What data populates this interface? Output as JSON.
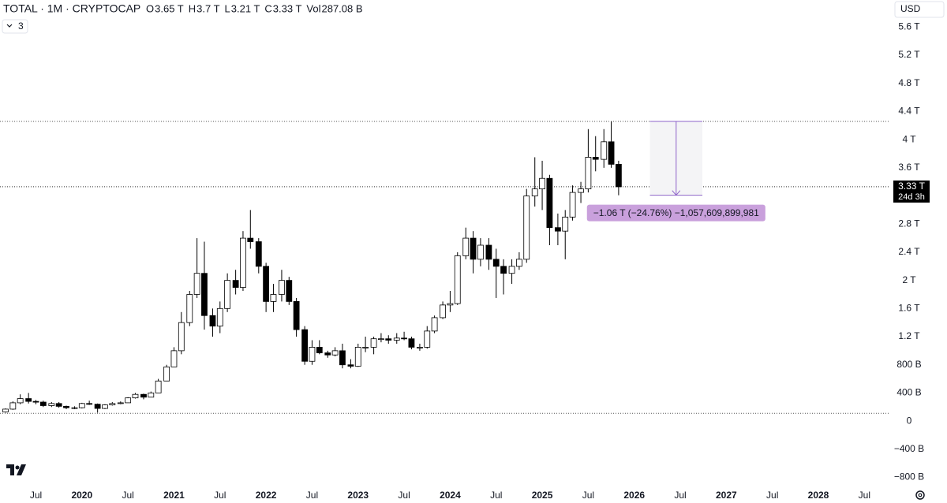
{
  "header": {
    "symbol": "TOTAL · 1M · CRYPTOCAP",
    "ohlc": [
      {
        "key": "O",
        "text": "3.65 T"
      },
      {
        "key": "H",
        "text": "3.7 T"
      },
      {
        "key": "L",
        "text": "3.21 T"
      },
      {
        "key": "C",
        "text": "3.33 T"
      },
      {
        "key": "Vol",
        "text": "287.08 B"
      }
    ],
    "indicator_count": "3",
    "currency": "USD"
  },
  "chart_data": {
    "type": "candlestick",
    "x": [
      2019.17,
      2019.25,
      2019.33,
      2019.42,
      2019.5,
      2019.58,
      2019.67,
      2019.75,
      2019.83,
      2019.92,
      2020,
      2020.08,
      2020.17,
      2020.25,
      2020.33,
      2020.42,
      2020.5,
      2020.58,
      2020.67,
      2020.75,
      2020.83,
      2020.92,
      2021,
      2021.08,
      2021.17,
      2021.25,
      2021.33,
      2021.42,
      2021.5,
      2021.58,
      2021.67,
      2021.75,
      2021.83,
      2021.92,
      2022,
      2022.08,
      2022.17,
      2022.25,
      2022.33,
      2022.42,
      2022.5,
      2022.58,
      2022.67,
      2022.75,
      2022.83,
      2022.92,
      2023,
      2023.08,
      2023.17,
      2023.25,
      2023.33,
      2023.42,
      2023.5,
      2023.58,
      2023.67,
      2023.75,
      2023.83,
      2023.92,
      2024,
      2024.08,
      2024.17,
      2024.25,
      2024.33,
      2024.42,
      2024.5,
      2024.58,
      2024.67,
      2024.75,
      2024.83,
      2024.92,
      2025,
      2025.08,
      2025.17,
      2025.25,
      2025.33,
      2025.42,
      2025.5,
      2025.58,
      2025.67,
      2025.75,
      2025.83
    ],
    "open": [
      0.13,
      0.17,
      0.26,
      0.32,
      0.28,
      0.27,
      0.22,
      0.25,
      0.21,
      0.19,
      0.19,
      0.25,
      0.24,
      0.18,
      0.23,
      0.25,
      0.26,
      0.33,
      0.38,
      0.34,
      0.4,
      0.57,
      0.77,
      1.0,
      1.4,
      1.8,
      2.1,
      1.5,
      1.35,
      1.6,
      2.0,
      1.9,
      2.6,
      2.55,
      2.2,
      1.7,
      1.8,
      2.0,
      1.7,
      1.3,
      0.85,
      1.05,
      0.97,
      0.94,
      1.0,
      0.8,
      0.78,
      1.05,
      1.05,
      1.17,
      1.17,
      1.15,
      1.18,
      1.17,
      1.05,
      1.05,
      1.28,
      1.47,
      1.65,
      1.67,
      2.35,
      2.6,
      2.3,
      2.5,
      2.3,
      2.2,
      2.1,
      2.2,
      2.3,
      3.2,
      3.3,
      3.45,
      2.75,
      2.7,
      2.9,
      3.25,
      3.3,
      3.75,
      3.72,
      3.97,
      3.65
    ],
    "high": [
      0.18,
      0.28,
      0.38,
      0.4,
      0.3,
      0.29,
      0.27,
      0.27,
      0.22,
      0.21,
      0.26,
      0.29,
      0.25,
      0.24,
      0.27,
      0.28,
      0.34,
      0.4,
      0.39,
      0.42,
      0.6,
      0.8,
      1.05,
      1.55,
      1.85,
      2.6,
      2.55,
      1.6,
      1.7,
      2.1,
      2.15,
      2.7,
      3.0,
      2.6,
      2.25,
      1.95,
      2.15,
      2.05,
      1.75,
      1.35,
      1.15,
      1.15,
      1.0,
      1.05,
      1.1,
      0.88,
      1.1,
      1.2,
      1.2,
      1.25,
      1.22,
      1.25,
      1.27,
      1.2,
      1.1,
      1.35,
      1.5,
      1.7,
      1.85,
      2.4,
      2.75,
      2.7,
      2.6,
      2.6,
      2.45,
      2.3,
      2.3,
      2.4,
      3.3,
      3.75,
      3.7,
      3.5,
      2.95,
      3.0,
      3.35,
      3.4,
      4.15,
      4.05,
      4.15,
      4.26,
      3.7
    ],
    "low": [
      0.12,
      0.16,
      0.24,
      0.25,
      0.24,
      0.2,
      0.2,
      0.19,
      0.17,
      0.17,
      0.18,
      0.23,
      0.12,
      0.17,
      0.22,
      0.24,
      0.26,
      0.32,
      0.31,
      0.34,
      0.4,
      0.57,
      0.77,
      0.95,
      1.35,
      1.75,
      1.3,
      1.2,
      1.25,
      1.55,
      1.8,
      1.85,
      2.45,
      2.1,
      1.55,
      1.55,
      1.7,
      1.65,
      1.2,
      0.8,
      0.8,
      0.95,
      0.9,
      0.92,
      0.75,
      0.75,
      0.77,
      0.98,
      0.95,
      1.12,
      1.1,
      1.1,
      1.15,
      1.02,
      1.0,
      1.03,
      1.25,
      1.45,
      1.55,
      1.65,
      2.3,
      2.1,
      2.2,
      2.15,
      1.75,
      1.8,
      1.95,
      2.15,
      2.25,
      3.05,
      3.0,
      2.5,
      2.5,
      2.3,
      2.85,
      3.1,
      3.25,
      3.55,
      3.6,
      3.6,
      3.21
    ],
    "close": [
      0.17,
      0.26,
      0.32,
      0.28,
      0.27,
      0.22,
      0.25,
      0.21,
      0.19,
      0.19,
      0.25,
      0.24,
      0.18,
      0.23,
      0.25,
      0.26,
      0.33,
      0.38,
      0.34,
      0.4,
      0.57,
      0.77,
      1.0,
      1.4,
      1.8,
      2.1,
      1.5,
      1.35,
      1.6,
      2.0,
      1.9,
      2.6,
      2.55,
      2.2,
      1.7,
      1.8,
      2.0,
      1.7,
      1.3,
      0.85,
      1.05,
      0.97,
      0.94,
      1.0,
      0.8,
      0.78,
      1.05,
      1.05,
      1.17,
      1.17,
      1.15,
      1.18,
      1.17,
      1.05,
      1.05,
      1.28,
      1.47,
      1.65,
      1.67,
      2.35,
      2.6,
      2.3,
      2.5,
      2.3,
      2.2,
      2.1,
      2.2,
      2.3,
      3.2,
      3.3,
      3.45,
      2.75,
      2.7,
      2.9,
      3.25,
      3.3,
      3.75,
      3.72,
      3.97,
      3.65,
      3.33
    ],
    "up_color": "#ffffff",
    "down_color": "#000000",
    "xlim": [
      2019.11,
      2028.78
    ],
    "xticks": [
      {
        "value": 2019.5,
        "label": "Jul"
      },
      2020,
      {
        "value": 2020.5,
        "label": "Jul"
      },
      2021,
      {
        "value": 2021.5,
        "label": "Jul"
      },
      2022,
      {
        "value": 2022.5,
        "label": "Jul"
      },
      2023,
      {
        "value": 2023.5,
        "label": "Jul"
      },
      2024,
      {
        "value": 2024.5,
        "label": "Jul"
      },
      2025,
      {
        "value": 2025.5,
        "label": "Jul"
      },
      2026,
      {
        "value": 2026.5,
        "label": "Jul"
      },
      2027,
      {
        "value": 2027.5,
        "label": "Jul"
      },
      2028,
      {
        "value": 2028.5,
        "label": "Jul"
      }
    ],
    "ylim": [
      -0.94,
      5.985
    ],
    "yticks": [
      {
        "value": 5.6,
        "label": "5.6 T"
      },
      {
        "value": 5.2,
        "label": "5.2 T"
      },
      {
        "value": 4.8,
        "label": "4.8 T"
      },
      {
        "value": 4.4,
        "label": "4.4 T"
      },
      {
        "value": 4,
        "label": "4 T"
      },
      {
        "value": 3.6,
        "label": "3.6 T"
      },
      {
        "value": 2.8,
        "label": "2.8 T"
      },
      {
        "value": 2.4,
        "label": "2.4 T"
      },
      {
        "value": 2,
        "label": "2 T"
      },
      {
        "value": 1.6,
        "label": "1.6 T"
      },
      {
        "value": 1.2,
        "label": "1.2 T"
      },
      {
        "value": 0.8,
        "label": "800 B"
      },
      {
        "value": 0.4,
        "label": "400 B"
      },
      0,
      {
        "value": -0.4,
        "label": "−400 B"
      },
      {
        "value": -0.8,
        "label": "−800 B"
      }
    ],
    "hlines": [
      4.26,
      0.11
    ],
    "last_price": {
      "value": 3.33,
      "label": "3.33 T",
      "countdown": "24d 3h"
    },
    "measure": {
      "x": [
        2026.17,
        2026.74
      ],
      "from": 4.26,
      "to": 3.21,
      "color": "#8e63c9",
      "label": "−1.06 T (−24.76%) −1,057,609,899,981"
    }
  }
}
